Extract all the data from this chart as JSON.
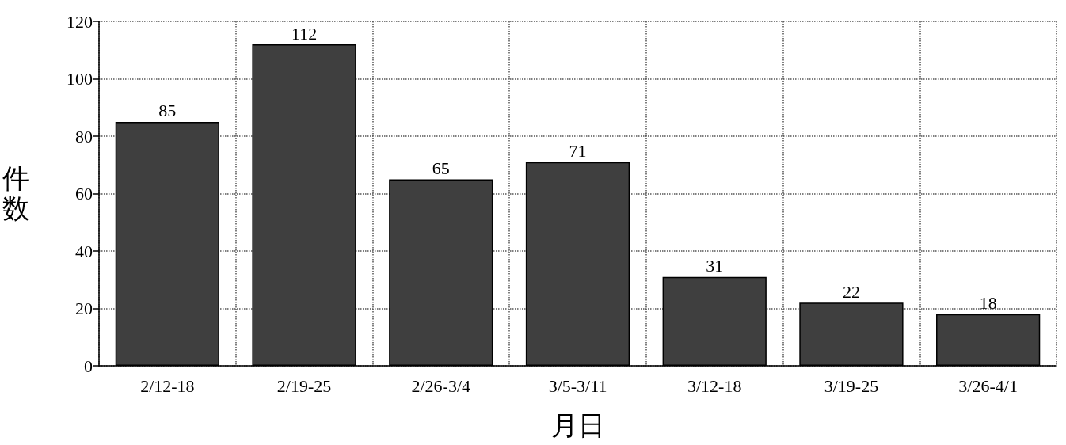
{
  "chart_data": {
    "type": "bar",
    "xlabel": "月日",
    "ylabel": "件数",
    "categories": [
      "2/12-18",
      "2/19-25",
      "2/26-3/4",
      "3/5-3/11",
      "3/12-18",
      "3/19-25",
      "3/26-4/1"
    ],
    "values": [
      85,
      112,
      65,
      71,
      31,
      22,
      18
    ],
    "color": "#3f3f3f",
    "ylim": [
      0,
      120
    ],
    "yticks": [
      0,
      20,
      40,
      60,
      80,
      100,
      120
    ],
    "grid": true,
    "data_labels": true
  }
}
